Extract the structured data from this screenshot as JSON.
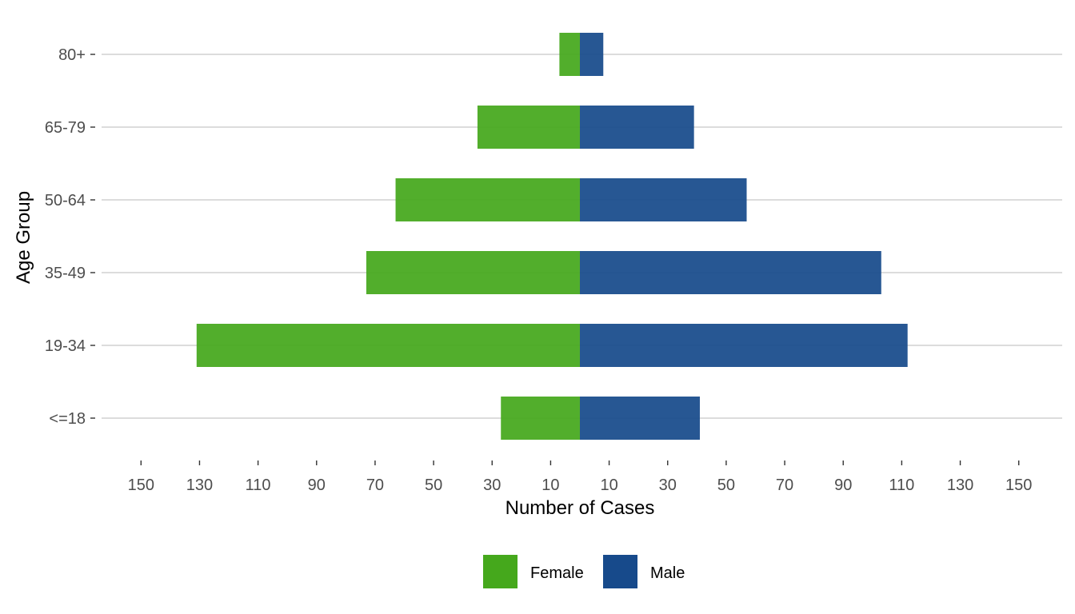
{
  "chart_data": {
    "type": "bar",
    "orientation": "horizontal",
    "layout": "population-pyramid",
    "title": "",
    "xlabel": "Number of Cases",
    "ylabel": "Age Group",
    "categories": [
      "<=18",
      "19-34",
      "35-49",
      "50-64",
      "65-79",
      "80+"
    ],
    "series": [
      {
        "name": "Female",
        "side": "left",
        "color": "#45a81c",
        "values": [
          27,
          131,
          73,
          63,
          35,
          7
        ]
      },
      {
        "name": "Male",
        "side": "right",
        "color": "#174a8b",
        "values": [
          41,
          112,
          103,
          57,
          39,
          8
        ]
      }
    ],
    "x_ticks": [
      -150,
      -130,
      -110,
      -90,
      -70,
      -50,
      -30,
      -10,
      10,
      30,
      50,
      70,
      90,
      110,
      130,
      150
    ],
    "x_tick_labels": [
      "150",
      "130",
      "110",
      "90",
      "70",
      "50",
      "30",
      "10",
      "10",
      "30",
      "50",
      "70",
      "90",
      "110",
      "130",
      "150"
    ],
    "xlim": [
      -150,
      150
    ],
    "grid": {
      "horizontal": true,
      "vertical": false
    },
    "legend": {
      "position": "bottom",
      "entries": [
        "Female",
        "Male"
      ]
    }
  }
}
